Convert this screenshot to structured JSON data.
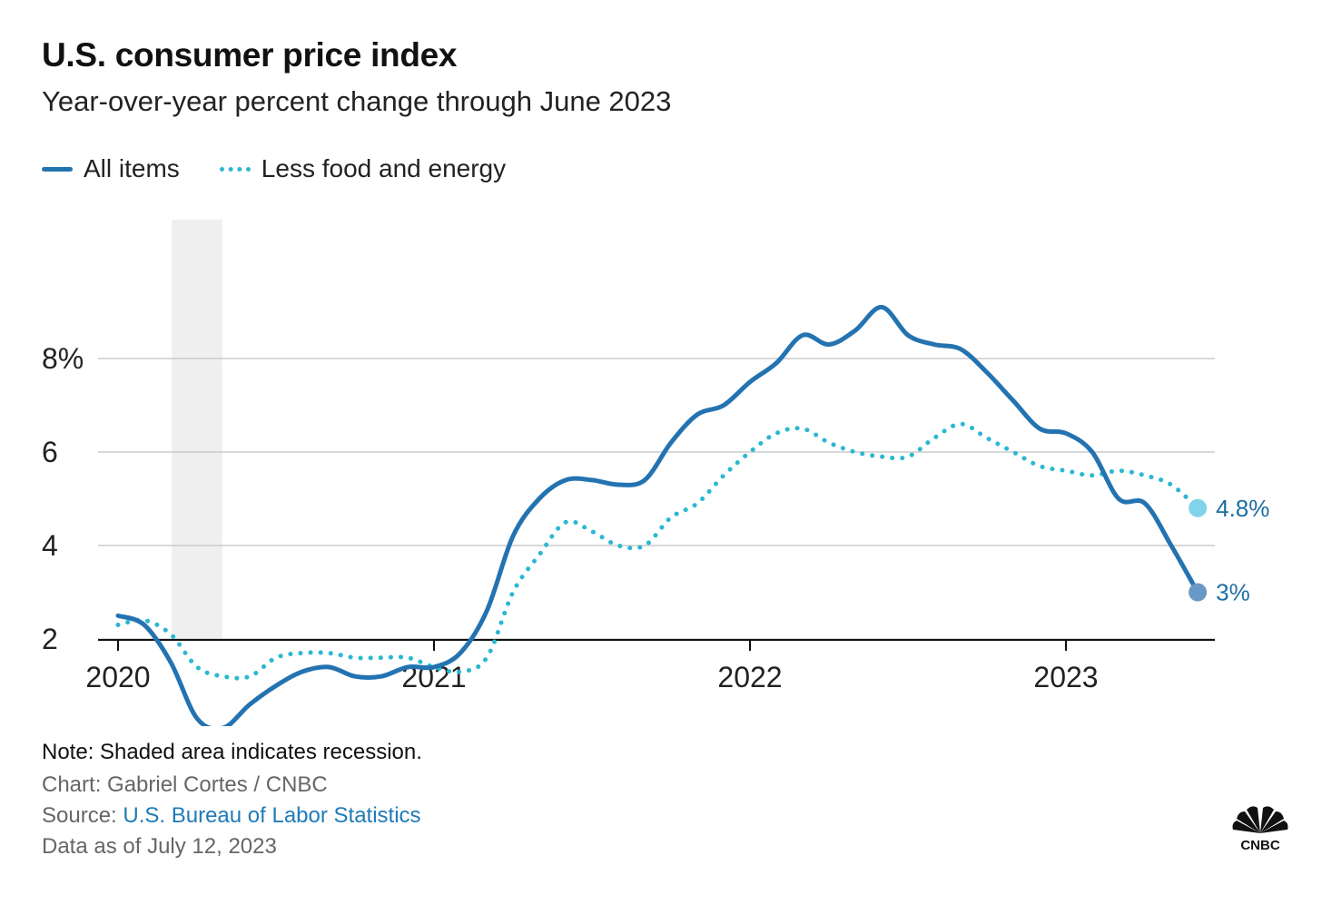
{
  "chart_data": {
    "type": "line",
    "title": "U.S. consumer price index",
    "subtitle": "Year-over-year percent change through June 2023",
    "xlabel": "",
    "ylabel": "",
    "x_ticks": [
      2020,
      2021,
      2022,
      2023
    ],
    "x_tick_labels": [
      "2020",
      "2021",
      "2022",
      "2023"
    ],
    "y_ticks": [
      2,
      4,
      6,
      8
    ],
    "y_tick_labels": [
      "2",
      "4",
      "6",
      "8%"
    ],
    "xlim": [
      2020,
      2023.5
    ],
    "ylim": [
      0,
      9
    ],
    "recession": {
      "start": 2020.17,
      "end": 2020.33
    },
    "series": [
      {
        "name": "All items",
        "style": "solid",
        "color": "#2473b1",
        "end_label": "3%",
        "points": [
          [
            2020.0,
            2.5
          ],
          [
            2020.083,
            2.3
          ],
          [
            2020.167,
            1.5
          ],
          [
            2020.25,
            0.3
          ],
          [
            2020.333,
            0.1
          ],
          [
            2020.417,
            0.6
          ],
          [
            2020.5,
            1.0
          ],
          [
            2020.583,
            1.3
          ],
          [
            2020.667,
            1.4
          ],
          [
            2020.75,
            1.2
          ],
          [
            2020.833,
            1.2
          ],
          [
            2020.917,
            1.4
          ],
          [
            2021.0,
            1.4
          ],
          [
            2021.083,
            1.7
          ],
          [
            2021.167,
            2.6
          ],
          [
            2021.25,
            4.2
          ],
          [
            2021.333,
            5.0
          ],
          [
            2021.417,
            5.4
          ],
          [
            2021.5,
            5.4
          ],
          [
            2021.583,
            5.3
          ],
          [
            2021.667,
            5.4
          ],
          [
            2021.75,
            6.2
          ],
          [
            2021.833,
            6.8
          ],
          [
            2021.917,
            7.0
          ],
          [
            2022.0,
            7.5
          ],
          [
            2022.083,
            7.9
          ],
          [
            2022.167,
            8.5
          ],
          [
            2022.25,
            8.3
          ],
          [
            2022.333,
            8.6
          ],
          [
            2022.417,
            9.1
          ],
          [
            2022.5,
            8.5
          ],
          [
            2022.583,
            8.3
          ],
          [
            2022.667,
            8.2
          ],
          [
            2022.75,
            7.7
          ],
          [
            2022.833,
            7.1
          ],
          [
            2022.917,
            6.5
          ],
          [
            2023.0,
            6.4
          ],
          [
            2023.083,
            6.0
          ],
          [
            2023.167,
            5.0
          ],
          [
            2023.25,
            4.9
          ],
          [
            2023.333,
            4.0
          ],
          [
            2023.417,
            3.0
          ]
        ]
      },
      {
        "name": "Less food and energy",
        "style": "dotted",
        "color": "#2ab8d2",
        "end_label": "4.8%",
        "points": [
          [
            2020.0,
            2.3
          ],
          [
            2020.083,
            2.4
          ],
          [
            2020.167,
            2.1
          ],
          [
            2020.25,
            1.4
          ],
          [
            2020.333,
            1.2
          ],
          [
            2020.417,
            1.2
          ],
          [
            2020.5,
            1.6
          ],
          [
            2020.583,
            1.7
          ],
          [
            2020.667,
            1.7
          ],
          [
            2020.75,
            1.6
          ],
          [
            2020.833,
            1.6
          ],
          [
            2020.917,
            1.6
          ],
          [
            2021.0,
            1.4
          ],
          [
            2021.083,
            1.3
          ],
          [
            2021.167,
            1.6
          ],
          [
            2021.25,
            3.0
          ],
          [
            2021.333,
            3.8
          ],
          [
            2021.417,
            4.5
          ],
          [
            2021.5,
            4.3
          ],
          [
            2021.583,
            4.0
          ],
          [
            2021.667,
            4.0
          ],
          [
            2021.75,
            4.6
          ],
          [
            2021.833,
            4.9
          ],
          [
            2021.917,
            5.5
          ],
          [
            2022.0,
            6.0
          ],
          [
            2022.083,
            6.4
          ],
          [
            2022.167,
            6.5
          ],
          [
            2022.25,
            6.2
          ],
          [
            2022.333,
            6.0
          ],
          [
            2022.417,
            5.9
          ],
          [
            2022.5,
            5.9
          ],
          [
            2022.583,
            6.3
          ],
          [
            2022.667,
            6.6
          ],
          [
            2022.75,
            6.3
          ],
          [
            2022.833,
            6.0
          ],
          [
            2022.917,
            5.7
          ],
          [
            2023.0,
            5.6
          ],
          [
            2023.083,
            5.5
          ],
          [
            2023.167,
            5.6
          ],
          [
            2023.25,
            5.5
          ],
          [
            2023.333,
            5.3
          ],
          [
            2023.417,
            4.8
          ]
        ]
      }
    ]
  },
  "legend": {
    "all_items": "All items",
    "less_food_energy": "Less food and energy"
  },
  "footer": {
    "note": "Note: Shaded area indicates recession.",
    "credit": "Chart: Gabriel Cortes / CNBC",
    "source_prefix": "Source: ",
    "source_link": "U.S. Bureau of Labor Statistics",
    "date": "Data as of July 12, 2023"
  },
  "logo": {
    "name": "CNBC",
    "icon": "peacock-icon"
  },
  "colors": {
    "all_items": "#2473b1",
    "core": "#2ab8d2",
    "grid": "#cccccc",
    "recession": "#efefef",
    "label_text": "#1c6ea4"
  }
}
